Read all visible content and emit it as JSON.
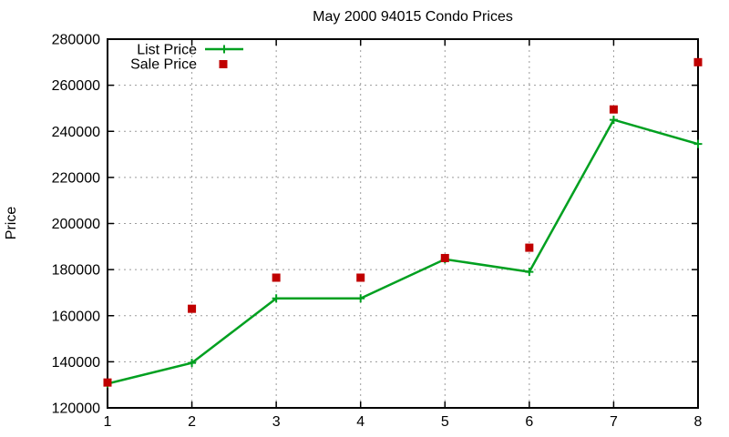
{
  "window": {
    "background": "#ffffff"
  },
  "chart_data": {
    "type": "line",
    "title": "May 2000 94015 Condo Prices",
    "xlabel": "",
    "ylabel": "Price",
    "x": [
      1,
      2,
      3,
      4,
      5,
      6,
      7,
      8
    ],
    "series": [
      {
        "name": "List Price",
        "style": "line-with-plus-markers",
        "color": "#00a020",
        "values": [
          130500,
          139500,
          167500,
          167500,
          184500,
          179000,
          245000,
          234500
        ]
      },
      {
        "name": "Sale Price",
        "style": "square-points",
        "color": "#c00000",
        "values": [
          131000,
          163000,
          176500,
          176500,
          185000,
          189500,
          249500,
          270000
        ]
      }
    ],
    "xlim": [
      1,
      8
    ],
    "ylim": [
      120000,
      280000
    ],
    "x_ticks": [
      1,
      2,
      3,
      4,
      5,
      6,
      7,
      8
    ],
    "y_ticks": [
      120000,
      140000,
      160000,
      180000,
      200000,
      220000,
      240000,
      260000,
      280000
    ],
    "grid": true,
    "grid_color": "#9b9b9b",
    "axis_color": "#000000",
    "legend_position": "top-left"
  }
}
